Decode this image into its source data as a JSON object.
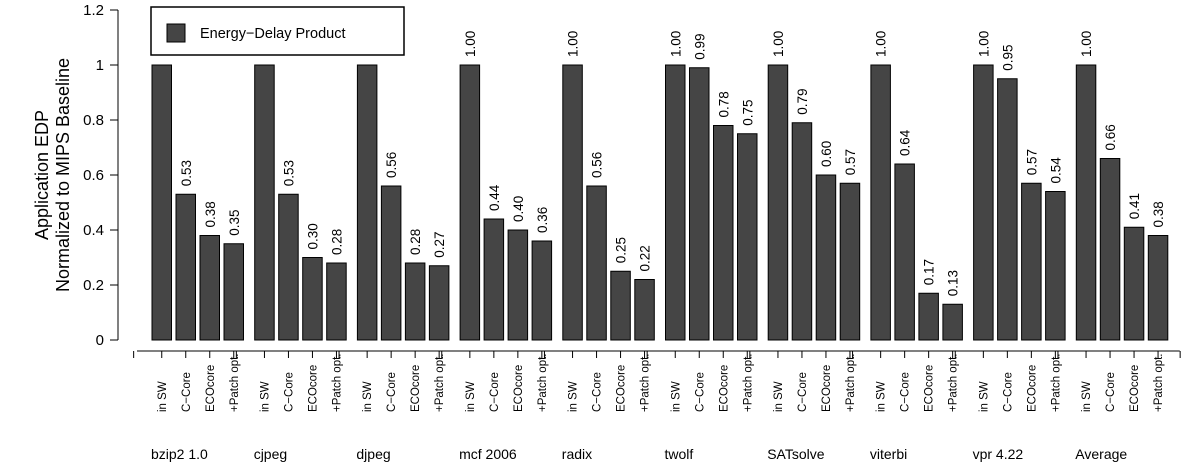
{
  "chart_data": {
    "type": "bar",
    "ylabel_lines": [
      "Application EDP",
      "Normalized to MIPS Baseline"
    ],
    "ylim": [
      0,
      1.2
    ],
    "yticks": [
      "0",
      "0.2",
      "0.4",
      "0.6",
      "0.8",
      "1",
      "1.2"
    ],
    "grid": false,
    "legend": {
      "position": "top-left",
      "entries": [
        "Energy−Delay Product"
      ]
    },
    "bar_color": "#454545",
    "variants": [
      "in SW",
      "C−Core",
      "ECOcore",
      "+Patch opt."
    ],
    "groups": [
      {
        "name": "bzip2 1.0",
        "values": [
          1.0,
          0.53,
          0.38,
          0.35
        ],
        "labels": [
          "",
          "0.53",
          "0.38",
          "0.35"
        ]
      },
      {
        "name": "cjpeg",
        "values": [
          1.0,
          0.53,
          0.3,
          0.28
        ],
        "labels": [
          "",
          "0.53",
          "0.30",
          "0.28"
        ]
      },
      {
        "name": "djpeg",
        "values": [
          1.0,
          0.56,
          0.28,
          0.27
        ],
        "labels": [
          "",
          "0.56",
          "0.28",
          "0.27"
        ]
      },
      {
        "name": "mcf 2006",
        "values": [
          1.0,
          0.44,
          0.4,
          0.36
        ],
        "labels": [
          "1.00",
          "0.44",
          "0.40",
          "0.36"
        ]
      },
      {
        "name": "radix",
        "values": [
          1.0,
          0.56,
          0.25,
          0.22
        ],
        "labels": [
          "1.00",
          "0.56",
          "0.25",
          "0.22"
        ]
      },
      {
        "name": "twolf",
        "values": [
          1.0,
          0.99,
          0.78,
          0.75
        ],
        "labels": [
          "1.00",
          "0.99",
          "0.78",
          "0.75"
        ]
      },
      {
        "name": "SATsolve",
        "values": [
          1.0,
          0.79,
          0.6,
          0.57
        ],
        "labels": [
          "1.00",
          "0.79",
          "0.60",
          "0.57"
        ]
      },
      {
        "name": "viterbi",
        "values": [
          1.0,
          0.64,
          0.17,
          0.13
        ],
        "labels": [
          "1.00",
          "0.64",
          "0.17",
          "0.13"
        ]
      },
      {
        "name": "vpr 4.22",
        "values": [
          1.0,
          0.95,
          0.57,
          0.54
        ],
        "labels": [
          "1.00",
          "0.95",
          "0.57",
          "0.54"
        ]
      },
      {
        "name": "Average",
        "values": [
          1.0,
          0.66,
          0.41,
          0.38
        ],
        "labels": [
          "1.00",
          "0.66",
          "0.41",
          "0.38"
        ]
      }
    ]
  }
}
